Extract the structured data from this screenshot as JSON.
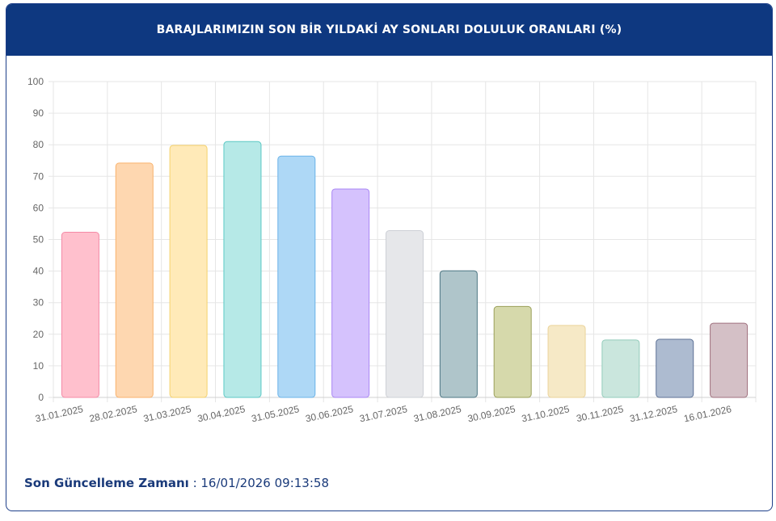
{
  "header": {
    "title": "BARAJLARIMIZIN SON BİR YILDAKİ AY SONLARI DOLULUK ORANLARI (%)"
  },
  "footer": {
    "label": "Son Güncelleme Zamanı",
    "separator": " : ",
    "value": "16/01/2026 09:13:58"
  },
  "chart_data": {
    "type": "bar",
    "title": "BARAJLARIMIZIN SON BİR YILDAKİ AY SONLARI DOLULUK ORANLARI (%)",
    "categories": [
      "31.01.2025",
      "28.02.2025",
      "31.03.2025",
      "30.04.2025",
      "31.05.2025",
      "30.06.2025",
      "31.07.2025",
      "31.08.2025",
      "30.09.2025",
      "31.10.2025",
      "30.11.2025",
      "31.12.2025",
      "16.01.2026"
    ],
    "values": [
      52.3,
      74.2,
      79.8,
      81.0,
      76.4,
      66.0,
      52.8,
      40.1,
      28.8,
      22.8,
      18.2,
      18.4,
      23.5
    ],
    "ylim": [
      0,
      100
    ],
    "yticks": [
      0,
      10,
      20,
      30,
      40,
      50,
      60,
      70,
      80,
      90,
      100
    ],
    "grid": true,
    "legend": "none",
    "bar_fills": [
      "#ffc0cd",
      "#fed7b0",
      "#ffeab8",
      "#b6e9e7",
      "#aed8f6",
      "#d5c2fd",
      "#e6e7ea",
      "#afc5ca",
      "#d6d9ab",
      "#f6e9c6",
      "#cae6dd",
      "#adbbd0",
      "#d4c0c6"
    ],
    "bar_strokes": [
      "#f48aa6",
      "#f9b26c",
      "#f5d26c",
      "#5cc8c4",
      "#6ab3e8",
      "#a987f4",
      "#cdd0d6",
      "#4c7683",
      "#9aa05a",
      "#ebd39a",
      "#93ccbb",
      "#5e7296",
      "#a0717f"
    ]
  }
}
